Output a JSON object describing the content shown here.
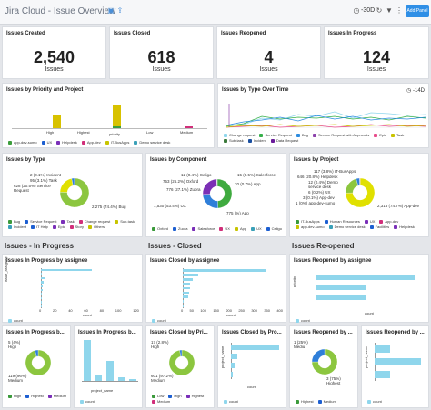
{
  "header": {
    "title": "Jira Cloud - Issue Overview",
    "time_range": "-30D",
    "add_panel": "Add Panel",
    "icons": [
      "save-icon",
      "share-icon",
      "clock-icon",
      "refresh-icon",
      "filter-icon",
      "more-icon"
    ]
  },
  "stats": [
    {
      "title": "Issues Created",
      "value": "2,540",
      "unit": "Issues"
    },
    {
      "title": "Issues Closed",
      "value": "618",
      "unit": "Issues"
    },
    {
      "title": "Issues Reopened",
      "value": "4",
      "unit": "Issues"
    },
    {
      "title": "Issues In Progress",
      "value": "124",
      "unit": "Issues"
    }
  ],
  "priority_project": {
    "title": "Issues by Priority and Project",
    "x_labels": [
      "High",
      "Highest",
      "priority",
      "Low",
      "Medium"
    ],
    "legend": [
      {
        "name": "app-dev-sumo",
        "color": "#3c9e3c"
      },
      {
        "name": "UX",
        "color": "#1d5fd1"
      },
      {
        "name": "Helpdesk",
        "color": "#7a2fb8"
      },
      {
        "name": "App-dev",
        "color": "#d12f7a"
      },
      {
        "name": "IT-BusApps",
        "color": "#c7c400"
      },
      {
        "name": "Demo service desk",
        "color": "#3aa0b8"
      }
    ]
  },
  "type_over_time": {
    "title": "Issues by Type Over Time",
    "time_range": "-14D",
    "legend": [
      {
        "name": "Change request",
        "color": "#8fd6ec"
      },
      {
        "name": "Service Request",
        "color": "#37b04a"
      },
      {
        "name": "Bug",
        "color": "#2d8ce0"
      },
      {
        "name": "Service Request with Approvals",
        "color": "#8e44ad"
      },
      {
        "name": "Epic",
        "color": "#e84c8b"
      },
      {
        "name": "Task",
        "color": "#c9c300"
      },
      {
        "name": "Sub-task",
        "color": "#3b7a3b"
      },
      {
        "name": "Incident",
        "color": "#1a4fa0"
      },
      {
        "name": "Data Request",
        "color": "#6a1b9a"
      }
    ]
  },
  "by_type": {
    "title": "Issues by Type",
    "labels": [
      "2 (0.1%) Incident",
      "95 (3.1%) Task",
      "628 (20.5%) Service Request",
      "2,275 (74.4%) Bug"
    ],
    "slices": [
      {
        "name": "Bug",
        "value": 2275,
        "color": "#8cc63f"
      },
      {
        "name": "Service Request",
        "value": 628,
        "color": "#e0e000"
      },
      {
        "name": "Task",
        "value": 95,
        "color": "#2f7fd9"
      },
      {
        "name": "Incident",
        "value": 2,
        "color": "#7b2fb5"
      }
    ],
    "legend": [
      {
        "name": "Bug",
        "color": "#3b9a3b"
      },
      {
        "name": "Service Request",
        "color": "#1d5fd1"
      },
      {
        "name": "Task",
        "color": "#7a2fb8"
      },
      {
        "name": "Change request",
        "color": "#d12f7a"
      },
      {
        "name": "Sub-task",
        "color": "#c7c400"
      },
      {
        "name": "Incident",
        "color": "#3aa0b8"
      },
      {
        "name": "IT Help",
        "color": "#1d5fd1"
      },
      {
        "name": "Epic",
        "color": "#7a2fb8"
      },
      {
        "name": "Story",
        "color": "#d12f7a"
      },
      {
        "name": "Others",
        "color": "#c7c400"
      }
    ]
  },
  "by_component": {
    "title": "Issues by Component",
    "labels": [
      "12 (0.4%) Celigo",
      "15 (0.5%) Salesforce",
      "20 (0.7%) App",
      "753 (26.2%) Oxford",
      "776 (27.1%) Zuora",
      "1,530 (53.4%) UX",
      "775 (%) App"
    ],
    "slices": [
      {
        "name": "UX",
        "value": 1530,
        "color": "#3faa3f"
      },
      {
        "name": "App",
        "value": 775,
        "color": "#2f7fd9"
      },
      {
        "name": "Zuora",
        "value": 776,
        "color": "#7b2fb5"
      },
      {
        "name": "Salesforce",
        "value": 15,
        "color": "#e84c8b"
      },
      {
        "name": "Celigo",
        "value": 12,
        "color": "#3aa0b8"
      }
    ],
    "legend": [
      {
        "name": "Oxford",
        "color": "#3b9a3b"
      },
      {
        "name": "Zuora",
        "color": "#1d5fd1"
      },
      {
        "name": "Salesforce",
        "color": "#7a2fb8"
      },
      {
        "name": "UX",
        "color": "#d12f7a"
      },
      {
        "name": "App",
        "color": "#c7c400"
      },
      {
        "name": "UX",
        "color": "#3aa0b8"
      },
      {
        "name": "Celigo",
        "color": "#1d5fd1"
      }
    ]
  },
  "by_project": {
    "title": "Issues by Project",
    "labels": [
      "117 (3.8%) IT-BusApps",
      "646 (20.8%) Helpdesk",
      "12 (0.4%) Demo service desk",
      "6 (0.2%) UX",
      "3 (0.1%) App-dev",
      "1 (0%) app-dev-sumo",
      "2,316 (74.7%) App-dev"
    ],
    "slices": [
      {
        "name": "App-dev",
        "value": 2316,
        "color": "#e0e000"
      },
      {
        "name": "Helpdesk",
        "value": 646,
        "color": "#8cc63f"
      },
      {
        "name": "IT-BusApps",
        "value": 117,
        "color": "#2f7fd9"
      },
      {
        "name": "Demo service desk",
        "value": 12,
        "color": "#7b2fb5"
      },
      {
        "name": "UX",
        "value": 6,
        "color": "#e84c8b"
      }
    ],
    "legend": [
      {
        "name": "IT-BusApps",
        "color": "#3b9a3b"
      },
      {
        "name": "Human Resources",
        "color": "#1d5fd1"
      },
      {
        "name": "UX",
        "color": "#7a2fb8"
      },
      {
        "name": "App-dev",
        "color": "#d12f7a"
      },
      {
        "name": "app-dev-sumo",
        "color": "#c7c400"
      },
      {
        "name": "Demo service desk",
        "color": "#3aa0b8"
      },
      {
        "name": "Facilities",
        "color": "#1d5fd1"
      },
      {
        "name": "Helpdesk",
        "color": "#7a2fb8"
      }
    ]
  },
  "sections": {
    "in_progress": "Issues - In Progress",
    "closed": "Issues - Closed",
    "reopened": "Issues Re-opened"
  },
  "inprog_assignee": {
    "title": "Issues In Progress by assignee",
    "ylabel": "issue_assignee",
    "xlabel": "count",
    "x_ticks": [
      "0",
      "20",
      "40",
      "60",
      "80",
      "100",
      "120"
    ],
    "bars": [
      62,
      1,
      6,
      3,
      2,
      2,
      1,
      1,
      1,
      1
    ],
    "legend": [
      {
        "name": "count",
        "color": "#8fd6ec"
      }
    ]
  },
  "closed_assignee": {
    "title": "Issues Closed by assignee",
    "xlabel": "count",
    "x_ticks": [
      "0",
      "50",
      "100",
      "150",
      "200",
      "250",
      "300",
      "350",
      "400"
    ],
    "bars": [
      330,
      60,
      40,
      30,
      30,
      25,
      20,
      5,
      3
    ],
    "legend": [
      {
        "name": "count",
        "color": "#8fd6ec"
      }
    ]
  },
  "reopened_assignee": {
    "title": "Issues Reopened by assignee",
    "ylabel": "priority",
    "xlabel": "count",
    "bars": [
      2,
      1,
      1
    ],
    "legend": [
      {
        "name": "count",
        "color": "#8fd6ec"
      }
    ]
  },
  "inprog_priority": {
    "title": "Issues In Progress b...",
    "labels": [
      "5 (4%) High",
      "119 (96%) Medium"
    ],
    "slices": [
      {
        "name": "Medium",
        "value": 119,
        "color": "#8cc63f"
      },
      {
        "name": "High",
        "value": 5,
        "color": "#2f7fd9"
      }
    ],
    "legend": [
      {
        "name": "High",
        "color": "#3b9a3b"
      },
      {
        "name": "Highest",
        "color": "#1d5fd1"
      },
      {
        "name": "Medium",
        "color": "#7a2fb8"
      }
    ]
  },
  "inprog_project": {
    "title": "Issues In Progress b...",
    "xlabel": "project_name",
    "bars": [
      60,
      8,
      30,
      5,
      3
    ],
    "legend": [
      {
        "name": "count",
        "color": "#8fd6ec"
      }
    ]
  },
  "closed_priority": {
    "title": "Issues Closed by Pri...",
    "labels": [
      "17 (2.8%) High",
      "601 (97.2%) Medium"
    ],
    "slices": [
      {
        "name": "Medium",
        "value": 601,
        "color": "#8cc63f"
      },
      {
        "name": "High",
        "value": 17,
        "color": "#2f7fd9"
      }
    ],
    "legend": [
      {
        "name": "Low",
        "color": "#3b9a3b"
      },
      {
        "name": "High",
        "color": "#1d5fd1"
      },
      {
        "name": "Highest",
        "color": "#7a2fb8"
      },
      {
        "name": "Medium",
        "color": "#d12f7a"
      }
    ]
  },
  "closed_project": {
    "title": "Issues Closed by Pro...",
    "ylabel": "project_name",
    "xlabel": "count",
    "bars": [
      300,
      40,
      20,
      10
    ],
    "legend": [
      {
        "name": "count",
        "color": "#8fd6ec"
      }
    ]
  },
  "reopened_priority": {
    "title": "Issues Reopened by ...",
    "labels": [
      "1 (25%) Mediu",
      "3 (75%) Highest"
    ],
    "slices": [
      {
        "name": "Highest",
        "value": 3,
        "color": "#8cc63f"
      },
      {
        "name": "Medium",
        "value": 1,
        "color": "#2f7fd9"
      }
    ],
    "legend": [
      {
        "name": "Highest",
        "color": "#3b9a3b"
      },
      {
        "name": "Medium",
        "color": "#1d5fd1"
      }
    ]
  },
  "reopened_project": {
    "title": "Issues Reopened by ...",
    "ylabel": "project_name",
    "bars": [
      1,
      3,
      1
    ],
    "legend": [
      {
        "name": "count",
        "color": "#8fd6ec"
      }
    ]
  }
}
